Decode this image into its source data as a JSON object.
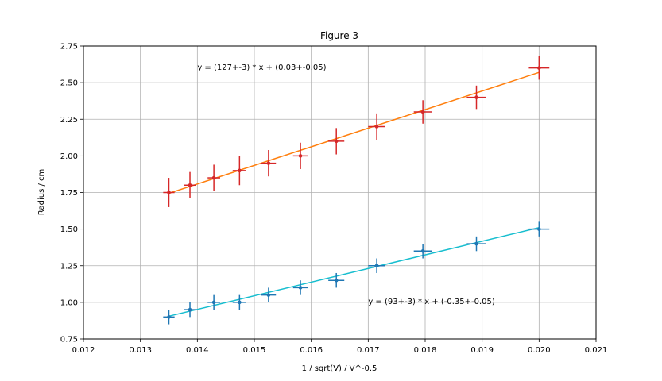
{
  "chart_data": {
    "type": "scatter",
    "title": "Figure 3",
    "xlabel": "1 / sqrt(V) / V^-0.5",
    "ylabel": "Radius / cm",
    "xlim": [
      0.012,
      0.021
    ],
    "ylim": [
      0.75,
      2.75
    ],
    "xticks": [
      "0.012",
      "0.013",
      "0.014",
      "0.015",
      "0.016",
      "0.017",
      "0.018",
      "0.019",
      "0.020",
      "0.021"
    ],
    "yticks": [
      "0.75",
      "1.00",
      "1.25",
      "1.50",
      "1.75",
      "2.00",
      "2.25",
      "2.50",
      "2.75"
    ],
    "grid": true,
    "series": [
      {
        "color": "#d62728",
        "fit_color": "#ff7f0e",
        "x": [
          0.0135,
          0.01387,
          0.01429,
          0.01474,
          0.01525,
          0.01581,
          0.01644,
          0.01715,
          0.01796,
          0.0189,
          0.02
        ],
        "y": [
          1.75,
          1.8,
          1.85,
          1.9,
          1.95,
          2.0,
          2.1,
          2.2,
          2.3,
          2.4,
          2.6
        ],
        "xerr": [
          0.0001,
          0.0001,
          0.00011,
          0.00012,
          0.00013,
          0.00013,
          0.00014,
          0.00015,
          0.00016,
          0.00017,
          0.00018
        ],
        "yerr": [
          0.1,
          0.09,
          0.09,
          0.1,
          0.09,
          0.09,
          0.09,
          0.09,
          0.08,
          0.08,
          0.08
        ],
        "fit": {
          "slope": 127,
          "intercept": 0.03
        },
        "annotation": "y = (127+-3) * x + (0.03+-0.05)",
        "annotation_pos": [
          0.014,
          2.61
        ]
      },
      {
        "color": "#1f77b4",
        "fit_color": "#17becf",
        "x": [
          0.0135,
          0.01387,
          0.01429,
          0.01474,
          0.01525,
          0.01581,
          0.01644,
          0.01715,
          0.01796,
          0.0189,
          0.02
        ],
        "y": [
          0.9,
          0.95,
          1.0,
          1.0,
          1.05,
          1.1,
          1.15,
          1.25,
          1.35,
          1.4,
          1.5
        ],
        "xerr": [
          0.0001,
          0.0001,
          0.00011,
          0.00012,
          0.00013,
          0.00013,
          0.00014,
          0.00015,
          0.00016,
          0.00017,
          0.00018
        ],
        "yerr": [
          0.05,
          0.05,
          0.05,
          0.05,
          0.05,
          0.05,
          0.05,
          0.05,
          0.05,
          0.05,
          0.05
        ],
        "fit": {
          "slope": 93,
          "intercept": -0.35
        },
        "annotation": "y = (93+-3) * x + (-0.35+-0.05)",
        "annotation_pos": [
          0.017,
          1.01
        ]
      }
    ]
  }
}
